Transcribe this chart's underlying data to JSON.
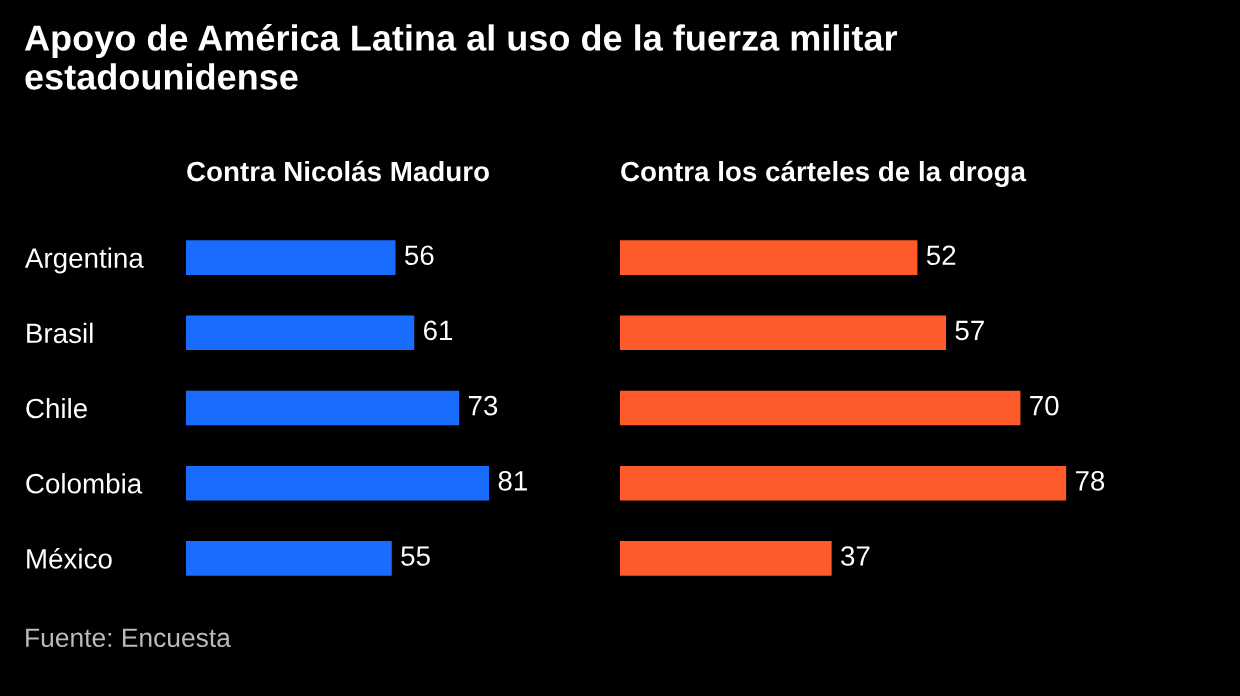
{
  "chart_data": [
    {
      "type": "bar",
      "orientation": "horizontal",
      "title": "Apoyo de América Latina al uso de la fuerza militar estadounidense",
      "subtitle": "Contra Nicolás Maduro",
      "categories": [
        "Argentina",
        "Brasil",
        "Chile",
        "Colombia",
        "México"
      ],
      "values": [
        56,
        61,
        73,
        81,
        55
      ],
      "color": "#1a6cff",
      "data_labels": true,
      "tick_labels": "y",
      "grid": false,
      "legend": false,
      "annotations": [
        "Fuente: Encuesta"
      ]
    },
    {
      "type": "bar",
      "orientation": "horizontal",
      "subtitle": "Contra los cárteles de la droga",
      "categories": [
        null,
        null,
        null,
        null,
        null
      ],
      "values": [
        52,
        57,
        70,
        78,
        37
      ],
      "color": "#ff5a2a",
      "data_labels": true,
      "tick_labels": false,
      "grid": false,
      "legend": false
    }
  ]
}
